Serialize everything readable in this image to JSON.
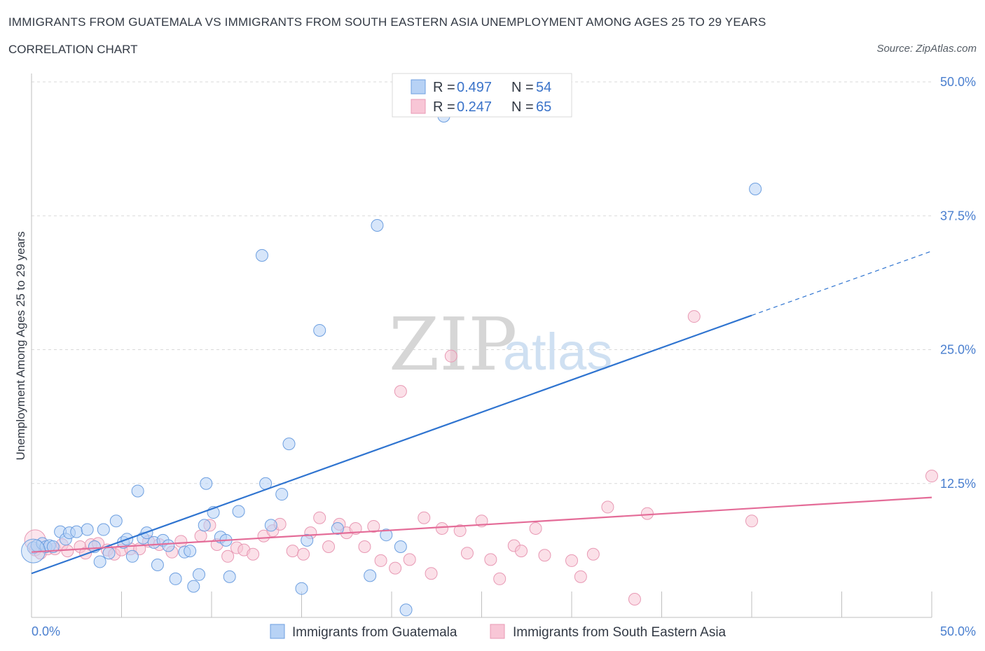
{
  "header": {
    "title": "IMMIGRANTS FROM GUATEMALA VS IMMIGRANTS FROM SOUTH EASTERN ASIA UNEMPLOYMENT AMONG AGES 25 TO 29 YEARS",
    "subtitle": "CORRELATION CHART",
    "source": "Source: ZipAtlas.com"
  },
  "watermark": {
    "zip": "ZIP",
    "atlas": "atlas"
  },
  "legend": {
    "rows": [
      {
        "r_label": "R = ",
        "r_value": "0.497",
        "n_label": "N = ",
        "n_value": "54"
      },
      {
        "r_label": "R = ",
        "r_value": "0.247",
        "n_label": "N = ",
        "n_value": "65"
      }
    ]
  },
  "colors": {
    "series1_fill": "#b7d2f5",
    "series1_stroke": "#6d9fe0",
    "series1_line": "#2f74d0",
    "series2_fill": "#f8c6d6",
    "series2_stroke": "#e899b4",
    "series2_line": "#e46c98",
    "tick_label": "#4a7fcf",
    "grid": "#d9d9d9"
  },
  "chart_data": {
    "type": "scatter",
    "title": "IMMIGRANTS FROM GUATEMALA VS IMMIGRANTS FROM SOUTH EASTERN ASIA UNEMPLOYMENT AMONG AGES 25 TO 29 YEARS",
    "xlabel": "",
    "ylabel": "Unemployment Among Ages 25 to 29 years",
    "xlim": [
      0,
      50
    ],
    "ylim": [
      0,
      50
    ],
    "x_tick_labels": [
      "0.0%",
      "50.0%"
    ],
    "y_ticks": [
      {
        "value": 12.5,
        "label": "12.5%"
      },
      {
        "value": 25.0,
        "label": "25.0%"
      },
      {
        "value": 37.5,
        "label": "37.5%"
      },
      {
        "value": 50.0,
        "label": "50.0%"
      }
    ],
    "series": [
      {
        "name": "Immigrants from Guatemala",
        "r": 0.497,
        "n": 54,
        "trend": {
          "x_start": 0,
          "y_start": 4.1,
          "x_solid_end": 40,
          "y_solid_end": 28.2,
          "x_dash_end": 50,
          "y_dash_end": 34.2
        },
        "points": [
          [
            0.1,
            6.5
          ],
          [
            0.3,
            6.7
          ],
          [
            0.6,
            6.9
          ],
          [
            0.8,
            6.6
          ],
          [
            1.0,
            6.7
          ],
          [
            1.2,
            6.6
          ],
          [
            1.6,
            8.0
          ],
          [
            1.9,
            7.3
          ],
          [
            2.1,
            7.9
          ],
          [
            2.5,
            8.0
          ],
          [
            3.1,
            8.2
          ],
          [
            3.5,
            6.6
          ],
          [
            3.8,
            5.2
          ],
          [
            4.0,
            8.2
          ],
          [
            4.3,
            6.0
          ],
          [
            4.7,
            9.0
          ],
          [
            5.1,
            7.0
          ],
          [
            5.3,
            7.3
          ],
          [
            5.6,
            5.7
          ],
          [
            5.9,
            11.8
          ],
          [
            6.2,
            7.4
          ],
          [
            6.4,
            7.9
          ],
          [
            6.8,
            7.0
          ],
          [
            7.0,
            4.9
          ],
          [
            7.3,
            7.2
          ],
          [
            7.6,
            6.7
          ],
          [
            8.0,
            3.6
          ],
          [
            8.5,
            6.1
          ],
          [
            8.8,
            6.2
          ],
          [
            9.0,
            2.9
          ],
          [
            9.3,
            4.0
          ],
          [
            9.6,
            8.6
          ],
          [
            9.7,
            12.5
          ],
          [
            10.1,
            9.8
          ],
          [
            10.5,
            7.5
          ],
          [
            10.8,
            7.2
          ],
          [
            11.0,
            3.8
          ],
          [
            11.5,
            9.9
          ],
          [
            12.8,
            33.8
          ],
          [
            13.0,
            12.5
          ],
          [
            13.3,
            8.6
          ],
          [
            13.9,
            11.5
          ],
          [
            14.3,
            16.2
          ],
          [
            15.0,
            2.7
          ],
          [
            15.3,
            7.2
          ],
          [
            16.0,
            26.8
          ],
          [
            17.0,
            8.3
          ],
          [
            18.8,
            3.9
          ],
          [
            19.2,
            36.6
          ],
          [
            19.7,
            7.7
          ],
          [
            20.5,
            6.6
          ],
          [
            20.8,
            0.7
          ],
          [
            22.9,
            46.8
          ],
          [
            40.2,
            40.0
          ]
        ]
      },
      {
        "name": "Immigrants from South Eastern Asia",
        "r": 0.247,
        "n": 65,
        "trend": {
          "x_start": 0,
          "y_start": 6.1,
          "x_solid_end": 50,
          "y_solid_end": 11.2
        },
        "points": [
          [
            0.2,
            6.3
          ],
          [
            0.5,
            6.0
          ],
          [
            0.9,
            6.4
          ],
          [
            1.3,
            6.4
          ],
          [
            1.7,
            6.8
          ],
          [
            2.0,
            6.2
          ],
          [
            2.7,
            6.6
          ],
          [
            3.0,
            6.0
          ],
          [
            3.3,
            6.8
          ],
          [
            3.7,
            6.9
          ],
          [
            4.2,
            6.3
          ],
          [
            4.6,
            5.9
          ],
          [
            5.0,
            6.3
          ],
          [
            5.5,
            6.4
          ],
          [
            6.0,
            6.4
          ],
          [
            6.5,
            7.1
          ],
          [
            7.1,
            6.8
          ],
          [
            7.8,
            6.1
          ],
          [
            8.3,
            7.1
          ],
          [
            9.4,
            7.6
          ],
          [
            9.9,
            8.6
          ],
          [
            10.3,
            6.8
          ],
          [
            10.9,
            5.7
          ],
          [
            11.4,
            6.5
          ],
          [
            11.8,
            6.3
          ],
          [
            12.3,
            5.9
          ],
          [
            12.9,
            7.6
          ],
          [
            13.4,
            8.1
          ],
          [
            13.8,
            8.7
          ],
          [
            14.5,
            6.2
          ],
          [
            15.1,
            5.9
          ],
          [
            15.5,
            7.9
          ],
          [
            16.0,
            9.3
          ],
          [
            16.5,
            6.6
          ],
          [
            17.1,
            8.7
          ],
          [
            17.5,
            7.9
          ],
          [
            18.0,
            8.3
          ],
          [
            18.5,
            6.6
          ],
          [
            19.0,
            8.5
          ],
          [
            19.4,
            5.3
          ],
          [
            20.2,
            4.6
          ],
          [
            20.5,
            21.1
          ],
          [
            21.0,
            5.4
          ],
          [
            21.8,
            9.3
          ],
          [
            22.2,
            4.1
          ],
          [
            22.8,
            8.3
          ],
          [
            23.3,
            24.4
          ],
          [
            23.8,
            8.1
          ],
          [
            24.2,
            6.0
          ],
          [
            25.0,
            9.0
          ],
          [
            25.5,
            5.4
          ],
          [
            26.0,
            3.6
          ],
          [
            26.8,
            6.7
          ],
          [
            27.2,
            6.2
          ],
          [
            28.0,
            8.3
          ],
          [
            28.5,
            5.8
          ],
          [
            30.0,
            5.3
          ],
          [
            30.5,
            3.8
          ],
          [
            31.2,
            5.9
          ],
          [
            32.0,
            10.3
          ],
          [
            33.5,
            1.7
          ],
          [
            34.2,
            9.7
          ],
          [
            36.8,
            28.1
          ],
          [
            40.0,
            9.0
          ],
          [
            50.0,
            13.2
          ]
        ]
      }
    ]
  }
}
